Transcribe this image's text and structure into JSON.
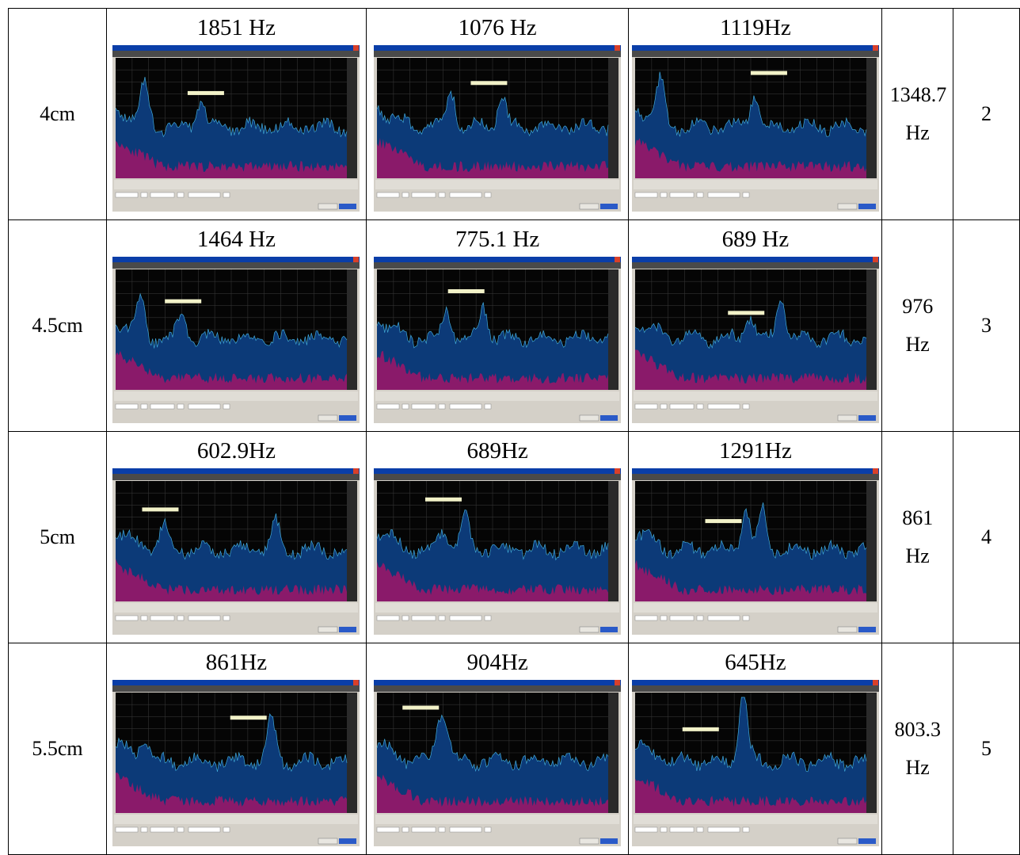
{
  "table": {
    "rows": [
      {
        "label": "4cm",
        "cells": [
          "1851 Hz",
          "1076 Hz",
          "1119Hz"
        ],
        "average": "1348.7 Hz",
        "index": "2"
      },
      {
        "label": "4.5cm",
        "cells": [
          "1464 Hz",
          "775.1 Hz",
          "689 Hz"
        ],
        "average": "976 Hz",
        "index": "3"
      },
      {
        "label": "5cm",
        "cells": [
          "602.9Hz",
          "689Hz",
          "1291Hz"
        ],
        "average": "861 Hz",
        "index": "4"
      },
      {
        "label": "5.5cm",
        "cells": [
          "861Hz",
          "904Hz",
          "645Hz"
        ],
        "average": "803.3 Hz",
        "index": "5"
      }
    ]
  }
}
